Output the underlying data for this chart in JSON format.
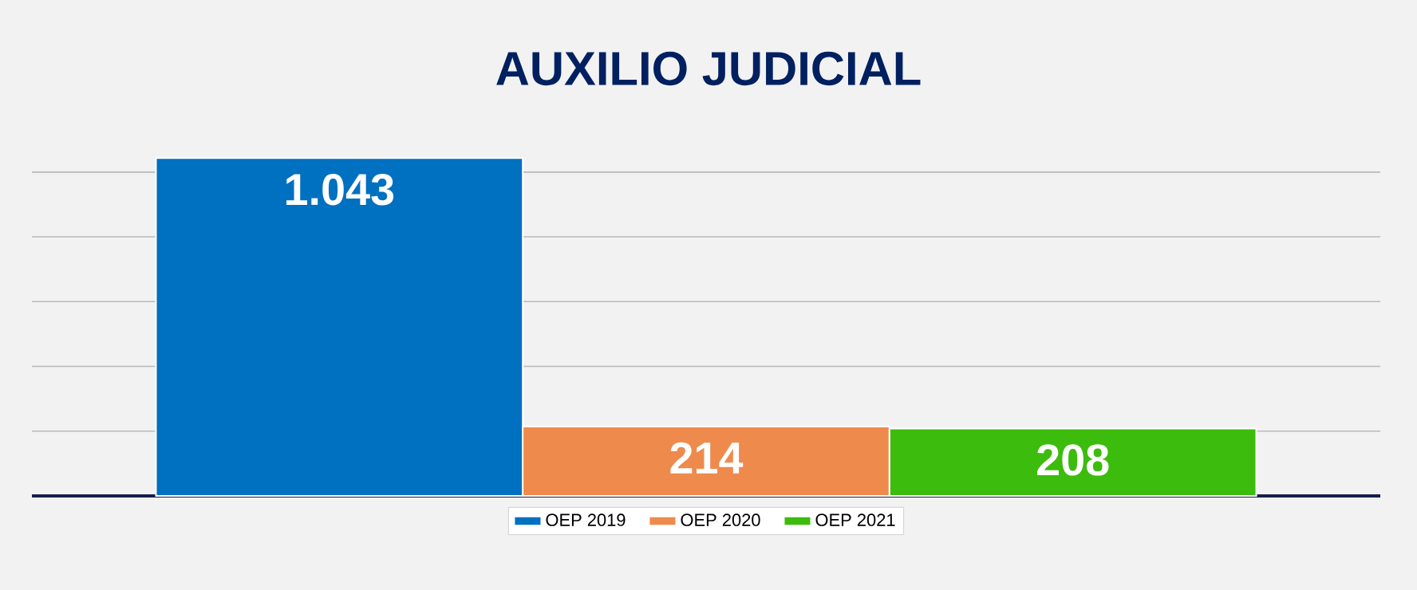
{
  "chart_data": {
    "type": "bar",
    "title": "AUXILIO JUDICIAL",
    "categories": [
      null
    ],
    "series": [
      {
        "name": "OEP 2019",
        "color": "#0070c0",
        "values": [
          1043
        ],
        "value_labels": [
          "1.043"
        ]
      },
      {
        "name": "OEP 2020",
        "color": "#ee8a4c",
        "values": [
          214
        ],
        "value_labels": [
          "214"
        ]
      },
      {
        "name": "OEP 2021",
        "color": "#3cbc0c",
        "values": [
          208
        ],
        "value_labels": [
          "208"
        ]
      }
    ],
    "tick_labels": false,
    "grid": "y",
    "legend": "bottom"
  }
}
